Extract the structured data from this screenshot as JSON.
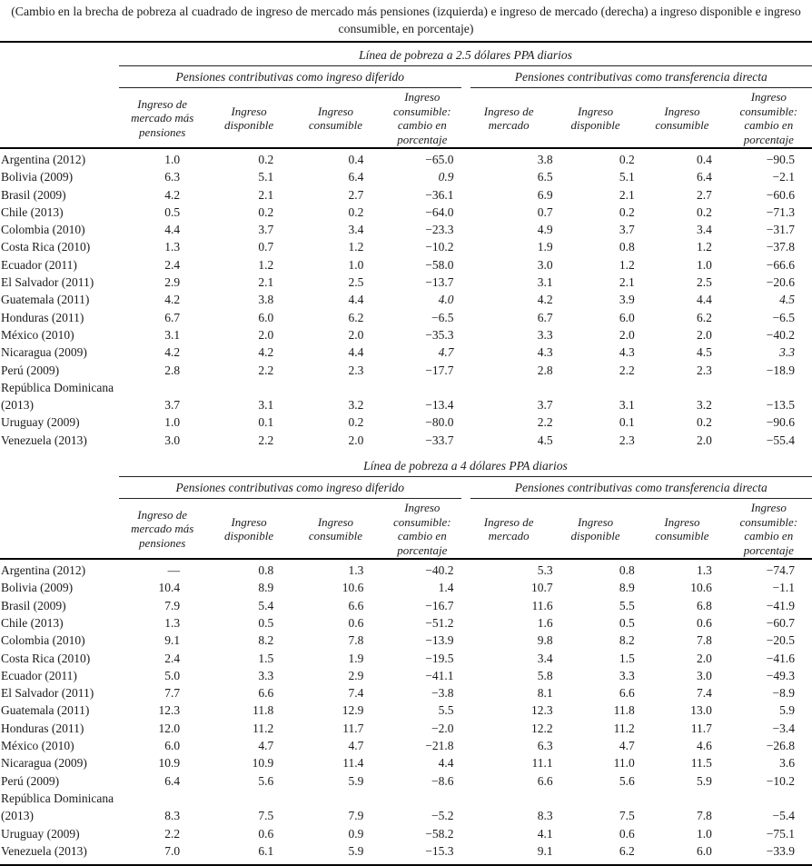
{
  "caption": "(Cambio en la brecha de pobreza al cuadrado de ingreso de mercado más pensiones (izquierda) e ingreso de mercado (derecha) a ingreso disponible e ingreso consumible, en porcentaje)",
  "tables": [
    {
      "section_title": "Línea de pobreza a 2.5 dólares PPA diarios",
      "groups": [
        {
          "label": "Pensiones contributivas como ingreso diferido"
        },
        {
          "label": "Pensiones contributivas como transferencia directa"
        }
      ],
      "column_headers": [
        "Ingreso de mercado más pensiones",
        "Ingreso disponible",
        "Ingreso consumible",
        "Ingreso consumible: cambio en porcentaje",
        "Ingreso de mercado",
        "Ingreso disponible",
        "Ingreso consumible",
        "Ingreso consumible: cambio en porcentaje"
      ],
      "rows": [
        {
          "label": "Argentina (2012)",
          "values": [
            "1.0",
            "0.2",
            "0.4",
            "−65.0",
            "3.8",
            "0.2",
            "0.4",
            "−90.5"
          ]
        },
        {
          "label": "Bolivia (2009)",
          "values": [
            "6.3",
            "5.1",
            "6.4",
            "0.9",
            "6.5",
            "5.1",
            "6.4",
            "−2.1"
          ],
          "italic": [
            3
          ]
        },
        {
          "label": "Brasil (2009)",
          "values": [
            "4.2",
            "2.1",
            "2.7",
            "−36.1",
            "6.9",
            "2.1",
            "2.7",
            "−60.6"
          ]
        },
        {
          "label": "Chile (2013)",
          "values": [
            "0.5",
            "0.2",
            "0.2",
            "−64.0",
            "0.7",
            "0.2",
            "0.2",
            "−71.3"
          ]
        },
        {
          "label": "Colombia (2010)",
          "values": [
            "4.4",
            "3.7",
            "3.4",
            "−23.3",
            "4.9",
            "3.7",
            "3.4",
            "−31.7"
          ]
        },
        {
          "label": "Costa Rica (2010)",
          "values": [
            "1.3",
            "0.7",
            "1.2",
            "−10.2",
            "1.9",
            "0.8",
            "1.2",
            "−37.8"
          ]
        },
        {
          "label": "Ecuador (2011)",
          "values": [
            "2.4",
            "1.2",
            "1.0",
            "−58.0",
            "3.0",
            "1.2",
            "1.0",
            "−66.6"
          ]
        },
        {
          "label": "El Salvador (2011)",
          "values": [
            "2.9",
            "2.1",
            "2.5",
            "−13.7",
            "3.1",
            "2.1",
            "2.5",
            "−20.6"
          ]
        },
        {
          "label": "Guatemala (2011)",
          "values": [
            "4.2",
            "3.8",
            "4.4",
            "4.0",
            "4.2",
            "3.9",
            "4.4",
            "4.5"
          ],
          "italic": [
            3,
            7
          ]
        },
        {
          "label": "Honduras (2011)",
          "values": [
            "6.7",
            "6.0",
            "6.2",
            "−6.5",
            "6.7",
            "6.0",
            "6.2",
            "−6.5"
          ]
        },
        {
          "label": "México (2010)",
          "values": [
            "3.1",
            "2.0",
            "2.0",
            "−35.3",
            "3.3",
            "2.0",
            "2.0",
            "−40.2"
          ]
        },
        {
          "label": "Nicaragua (2009)",
          "values": [
            "4.2",
            "4.2",
            "4.4",
            "4.7",
            "4.3",
            "4.3",
            "4.5",
            "3.3"
          ],
          "italic": [
            3,
            7
          ]
        },
        {
          "label": "Perú (2009)",
          "values": [
            "2.8",
            "2.2",
            "2.3",
            "−17.7",
            "2.8",
            "2.2",
            "2.3",
            "−18.9"
          ]
        },
        {
          "label": "República Dominicana (2013)",
          "label_lines": [
            "República Dominicana",
            "(2013)"
          ],
          "values": [
            "3.7",
            "3.1",
            "3.2",
            "−13.4",
            "3.7",
            "3.1",
            "3.2",
            "−13.5"
          ]
        },
        {
          "label": "Uruguay (2009)",
          "values": [
            "1.0",
            "0.1",
            "0.2",
            "−80.0",
            "2.2",
            "0.1",
            "0.2",
            "−90.6"
          ]
        },
        {
          "label": "Venezuela (2013)",
          "values": [
            "3.0",
            "2.2",
            "2.0",
            "−33.7",
            "4.5",
            "2.3",
            "2.0",
            "−55.4"
          ]
        }
      ]
    },
    {
      "section_title": "Línea de pobreza a 4 dólares PPA diarios",
      "groups": [
        {
          "label": "Pensiones contributivas como ingreso diferido"
        },
        {
          "label": "Pensiones contributivas como transferencia directa"
        }
      ],
      "column_headers": [
        "Ingreso de mercado más pensiones",
        "Ingreso disponible",
        "Ingreso consumible",
        "Ingreso consumible: cambio en porcentaje",
        "Ingreso de mercado",
        "Ingreso disponible",
        "Ingreso consumible",
        "Ingreso consumible: cambio en porcentaje"
      ],
      "rows": [
        {
          "label": "Argentina (2012)",
          "values": [
            "—",
            "0.8",
            "1.3",
            "−40.2",
            "5.3",
            "0.8",
            "1.3",
            "−74.7"
          ]
        },
        {
          "label": "Bolivia (2009)",
          "values": [
            "10.4",
            "8.9",
            "10.6",
            "1.4",
            "10.7",
            "8.9",
            "10.6",
            "−1.1"
          ]
        },
        {
          "label": "Brasil (2009)",
          "values": [
            "7.9",
            "5.4",
            "6.6",
            "−16.7",
            "11.6",
            "5.5",
            "6.8",
            "−41.9"
          ]
        },
        {
          "label": "Chile (2013)",
          "values": [
            "1.3",
            "0.5",
            "0.6",
            "−51.2",
            "1.6",
            "0.5",
            "0.6",
            "−60.7"
          ]
        },
        {
          "label": "Colombia (2010)",
          "values": [
            "9.1",
            "8.2",
            "7.8",
            "−13.9",
            "9.8",
            "8.2",
            "7.8",
            "−20.5"
          ]
        },
        {
          "label": "Costa Rica (2010)",
          "values": [
            "2.4",
            "1.5",
            "1.9",
            "−19.5",
            "3.4",
            "1.5",
            "2.0",
            "−41.6"
          ]
        },
        {
          "label": "Ecuador (2011)",
          "values": [
            "5.0",
            "3.3",
            "2.9",
            "−41.1",
            "5.8",
            "3.3",
            "3.0",
            "−49.3"
          ]
        },
        {
          "label": "El Salvador (2011)",
          "values": [
            "7.7",
            "6.6",
            "7.4",
            "−3.8",
            "8.1",
            "6.6",
            "7.4",
            "−8.9"
          ]
        },
        {
          "label": "Guatemala (2011)",
          "values": [
            "12.3",
            "11.8",
            "12.9",
            "5.5",
            "12.3",
            "11.8",
            "13.0",
            "5.9"
          ]
        },
        {
          "label": "Honduras (2011)",
          "values": [
            "12.0",
            "11.2",
            "11.7",
            "−2.0",
            "12.2",
            "11.2",
            "11.7",
            "−3.4"
          ]
        },
        {
          "label": "México (2010)",
          "values": [
            "6.0",
            "4.7",
            "4.7",
            "−21.8",
            "6.3",
            "4.7",
            "4.6",
            "−26.8"
          ]
        },
        {
          "label": "Nicaragua (2009)",
          "values": [
            "10.9",
            "10.9",
            "11.4",
            "4.4",
            "11.1",
            "11.0",
            "11.5",
            "3.6"
          ]
        },
        {
          "label": "Perú (2009)",
          "values": [
            "6.4",
            "5.6",
            "5.9",
            "−8.6",
            "6.6",
            "5.6",
            "5.9",
            "−10.2"
          ]
        },
        {
          "label": "República Dominicana (2013)",
          "label_lines": [
            "República Dominicana",
            "(2013)"
          ],
          "values": [
            "8.3",
            "7.5",
            "7.9",
            "−5.2",
            "8.3",
            "7.5",
            "7.8",
            "−5.4"
          ]
        },
        {
          "label": "Uruguay (2009)",
          "values": [
            "2.2",
            "0.6",
            "0.9",
            "−58.2",
            "4.1",
            "0.6",
            "1.0",
            "−75.1"
          ]
        },
        {
          "label": "Venezuela (2013)",
          "values": [
            "7.0",
            "6.1",
            "5.9",
            "−15.3",
            "9.1",
            "6.2",
            "6.0",
            "−33.9"
          ]
        }
      ]
    }
  ]
}
